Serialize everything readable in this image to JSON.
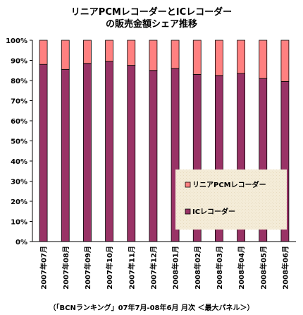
{
  "chart_data": {
    "type": "bar",
    "stacked": true,
    "percent": true,
    "title": [
      "リニアPCMレコーダーとICレコーダー",
      "の販売金額シェア推移"
    ],
    "categories": [
      "2007年07月",
      "2007年08月",
      "2007年09月",
      "2007年10月",
      "2007年11月",
      "2007年12月",
      "2008年01月",
      "2008年02月",
      "2008年03月",
      "2008年04月",
      "2008年05月",
      "2008年06月"
    ],
    "series": [
      {
        "name": "ICレコーダー",
        "color": "#993366",
        "values": [
          88,
          85.5,
          88.5,
          89.5,
          87.5,
          85,
          86,
          83,
          82.5,
          83.5,
          81,
          79.5
        ]
      },
      {
        "name": "リニアPCMレコーダー",
        "color": "#ff8080",
        "values": [
          12,
          14.5,
          11.5,
          10.5,
          12.5,
          15,
          14,
          17,
          17.5,
          16.5,
          19,
          20.5
        ]
      }
    ],
    "ylim": [
      0,
      100
    ],
    "yticks": [
      "0%",
      "10%",
      "20%",
      "30%",
      "40%",
      "50%",
      "60%",
      "70%",
      "80%",
      "90%",
      "100%"
    ],
    "legend_position": "bottom-right",
    "legend_order": [
      "リニアPCMレコーダー",
      "ICレコーダー"
    ],
    "grid": false
  },
  "caption": "（「BCNランキング」07年7月-08年6月 月次 ＜最大パネル＞）",
  "colors": {
    "legend_bg": "#f4ecd8",
    "axis": "#000000"
  }
}
